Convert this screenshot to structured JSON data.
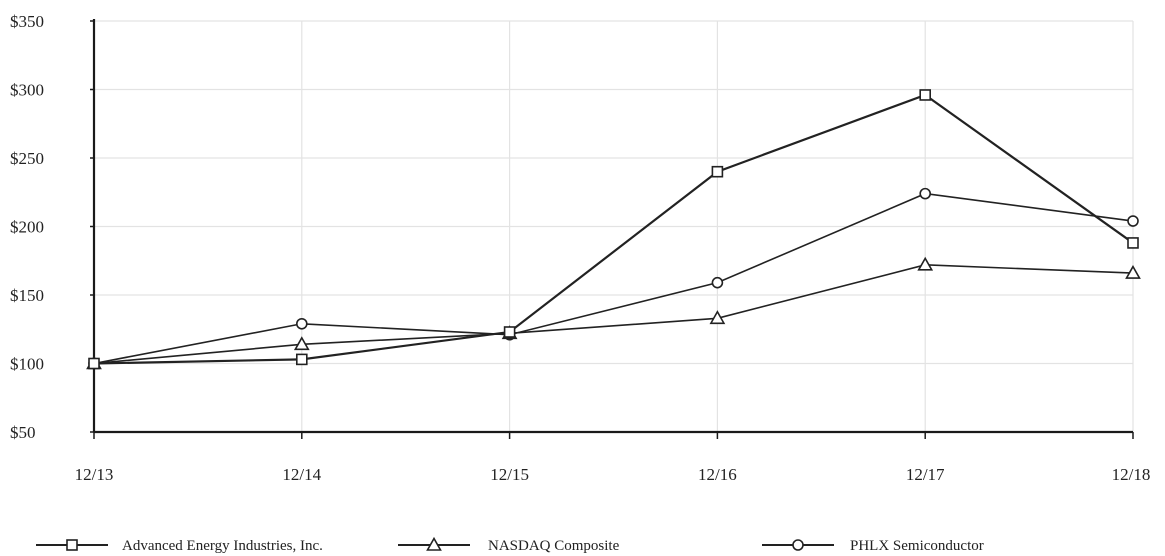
{
  "chart_data": {
    "type": "line",
    "title": "",
    "xlabel": "",
    "ylabel": "",
    "categories": [
      "12/13",
      "12/14",
      "12/15",
      "12/16",
      "12/17",
      "12/18"
    ],
    "y_ticks": [
      "$50",
      "$100",
      "$150",
      "$200",
      "$250",
      "$300",
      "$350"
    ],
    "ylim": [
      50,
      350
    ],
    "grid": true,
    "legend_position": "bottom",
    "series": [
      {
        "name": "Advanced Energy Industries, Inc.",
        "marker": "square",
        "values": [
          100,
          103,
          123,
          240,
          296,
          188
        ]
      },
      {
        "name": "NASDAQ Composite",
        "marker": "triangle",
        "values": [
          100,
          114,
          122,
          133,
          172,
          166
        ]
      },
      {
        "name": "PHLX Semiconductor",
        "marker": "circle",
        "values": [
          100,
          129,
          121,
          159,
          224,
          204
        ]
      }
    ],
    "colors": {
      "line": "#222222",
      "grid": "#e3e3e3",
      "axis": "#1a1a1a"
    }
  }
}
